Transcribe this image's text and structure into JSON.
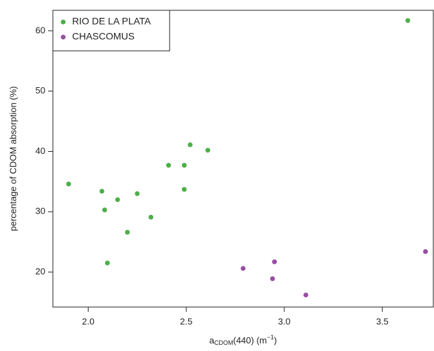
{
  "chart_data": {
    "type": "scatter",
    "x_label": {
      "base": "a",
      "sub": "CDOM",
      "main": "(440) (m",
      "sup": "−1",
      "end": ")"
    },
    "y_label": "percentage of CDOM absorption (%)",
    "xlim": [
      1.82,
      3.76
    ],
    "ylim": [
      14.2,
      63.4
    ],
    "xticks": [
      {
        "value": 2,
        "label": "2.0"
      },
      {
        "value": 2.5,
        "label": "2.5"
      },
      {
        "value": 3,
        "label": "3.0"
      },
      {
        "value": 3.5,
        "label": "3.5"
      }
    ],
    "yticks": [
      20,
      30,
      40,
      50,
      60
    ],
    "legend": "top-left",
    "series": [
      {
        "name": "RIO DE LA PLATA",
        "color": "#4daf4a",
        "x": [
          1.9,
          2.07,
          2.084,
          2.15,
          2.25,
          2.2,
          2.098,
          2.32,
          2.41,
          2.49,
          2.49,
          2.52,
          2.61,
          3.63
        ],
        "values": [
          34.6,
          33.4,
          30.3,
          32.0,
          33.0,
          26.6,
          21.5,
          29.1,
          37.7,
          37.7,
          33.7,
          41.1,
          40.2,
          61.7
        ]
      },
      {
        "name": "CHASCOMUS",
        "color": "#984ea3",
        "x": [
          2.79,
          2.95,
          2.94,
          3.11,
          3.72
        ],
        "values": [
          20.6,
          21.7,
          18.9,
          16.2,
          23.4
        ]
      }
    ]
  }
}
